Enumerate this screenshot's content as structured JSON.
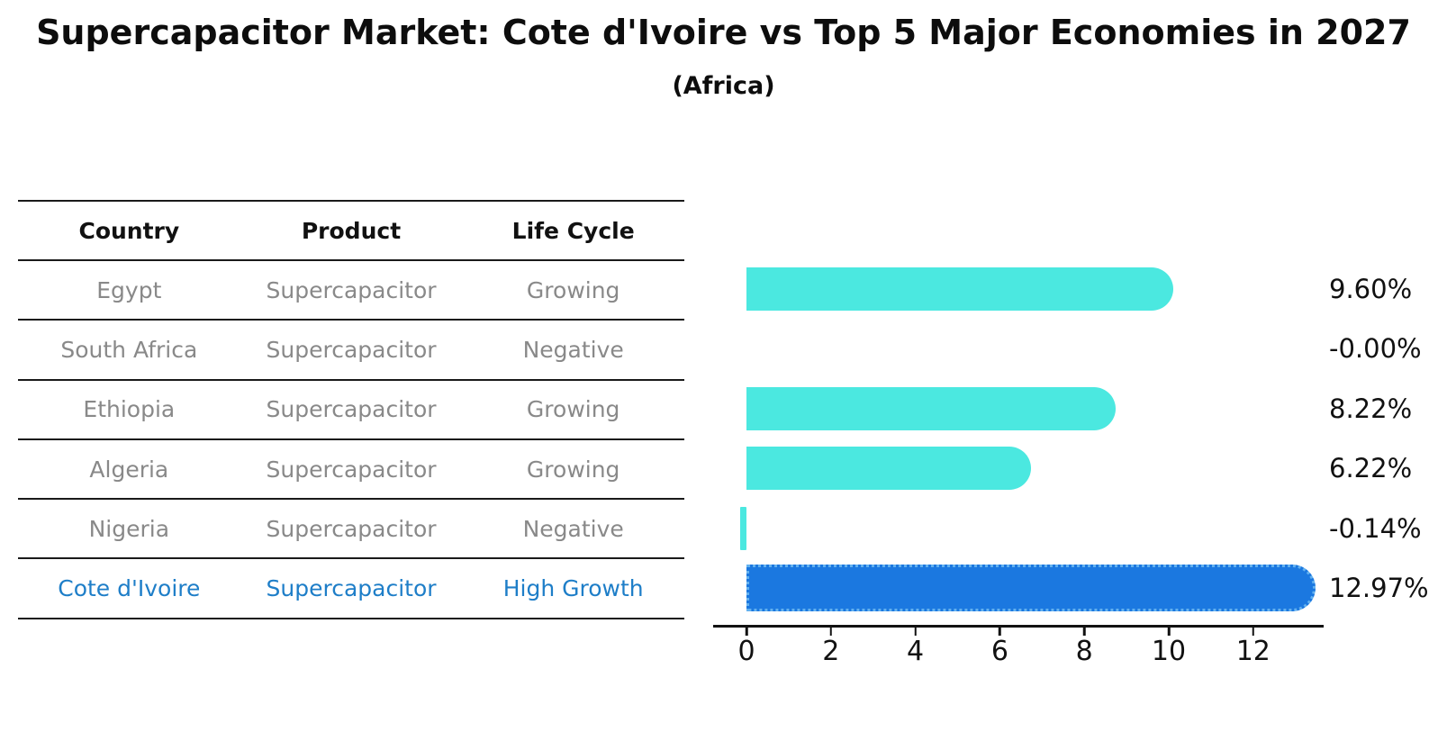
{
  "header": {
    "title": "Supercapacitor Market: Cote d'Ivoire vs Top 5 Major Economies in 2027",
    "subtitle": "(Africa)"
  },
  "table": {
    "columns": [
      "Country",
      "Product",
      "Life Cycle"
    ],
    "rows": [
      {
        "country": "Egypt",
        "product": "Supercapacitor",
        "life_cycle": "Growing",
        "highlight": false
      },
      {
        "country": "South Africa",
        "product": "Supercapacitor",
        "life_cycle": "Negative",
        "highlight": false
      },
      {
        "country": "Ethiopia",
        "product": "Supercapacitor",
        "life_cycle": "Growing",
        "highlight": false
      },
      {
        "country": "Algeria",
        "product": "Supercapacitor",
        "life_cycle": "Growing",
        "highlight": false
      },
      {
        "country": "Nigeria",
        "product": "Supercapacitor",
        "life_cycle": "Negative",
        "highlight": false
      },
      {
        "country": "Cote d'Ivoire",
        "product": "Supercapacitor",
        "life_cycle": "High Growth",
        "highlight": true
      }
    ]
  },
  "chart_data": {
    "type": "bar",
    "orientation": "horizontal",
    "title": "Supercapacitor Market: Cote d'Ivoire vs Top 5 Major Economies in 2027",
    "subtitle": "(Africa)",
    "categories": [
      "Egypt",
      "South Africa",
      "Ethiopia",
      "Algeria",
      "Nigeria",
      "Cote d'Ivoire"
    ],
    "values": [
      9.6,
      -0.0,
      8.22,
      6.22,
      -0.14,
      12.97
    ],
    "value_labels": [
      "9.60%",
      "-0.00%",
      "8.22%",
      "6.22%",
      "-0.14%",
      "12.97%"
    ],
    "x_ticks": [
      0,
      2,
      4,
      6,
      8,
      10,
      12
    ],
    "xlim": [
      -0.8,
      13.7
    ],
    "grid": false,
    "legend": false,
    "highlight_index": 5,
    "bar_color": "#4be8e0",
    "highlight_bar_color": "#1b78e0",
    "highlight_text_color": "#1e7ec8"
  }
}
